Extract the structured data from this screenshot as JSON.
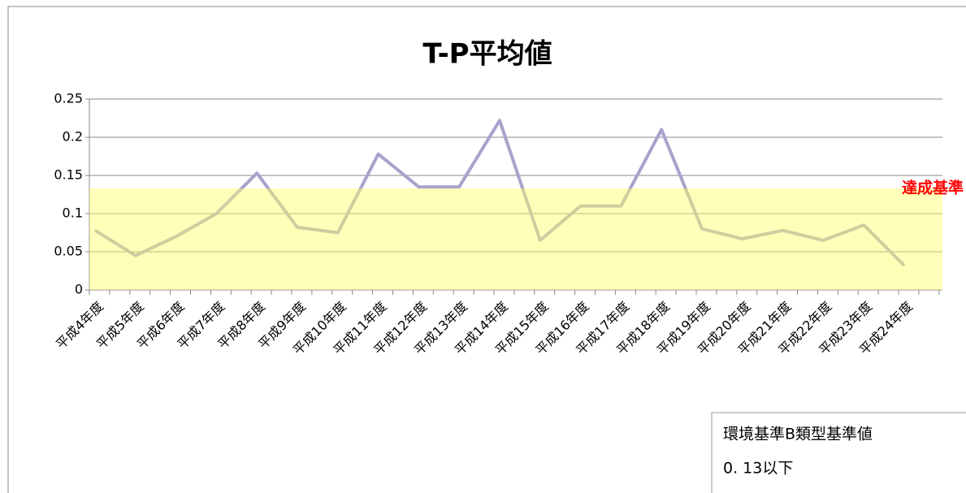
{
  "chart_data": {
    "type": "line",
    "title": "T-P平均値",
    "categories": [
      "平成4年度",
      "平成5年度",
      "平成6年度",
      "平成7年度",
      "平成8年度",
      "平成9年度",
      "平成10年度",
      "平成11年度",
      "平成12年度",
      "平成13年度",
      "平成14年度",
      "平成15年度",
      "平成16年度",
      "平成17年度",
      "平成18年度",
      "平成19年度",
      "平成20年度",
      "平成21年度",
      "平成22年度",
      "平成23年度",
      "平成24年度"
    ],
    "values": [
      0.078,
      0.045,
      0.07,
      0.1,
      0.153,
      0.082,
      0.075,
      0.178,
      0.135,
      0.135,
      0.222,
      0.065,
      0.11,
      0.11,
      0.21,
      0.08,
      0.067,
      0.078,
      0.065,
      0.085,
      0.032
    ],
    "color": "#aaa2cc",
    "ylim": [
      0,
      0.25
    ],
    "yticks": [
      0,
      0.05,
      0.1,
      0.15,
      0.2,
      0.25
    ],
    "grid": true,
    "band": {
      "value": 0.133,
      "color": "#ffff66",
      "label": "達成基準"
    },
    "note": [
      "環境基準B類型基準値",
      "0. 13以下"
    ]
  }
}
